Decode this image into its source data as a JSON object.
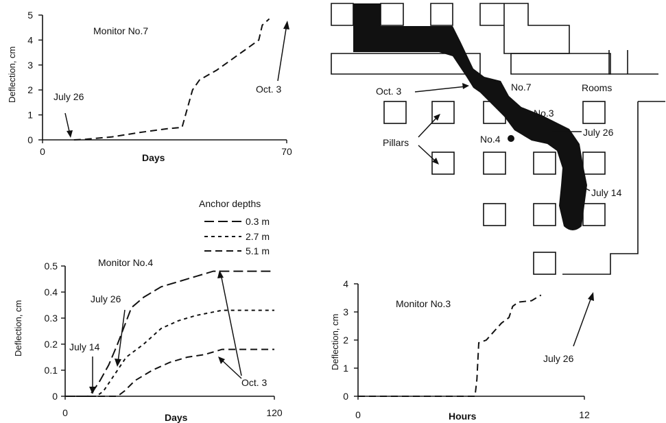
{
  "chart_data": [
    {
      "type": "line",
      "title": "Monitor No.7",
      "xlabel": "Days",
      "ylabel": "Deflection, cm",
      "xlim": [
        0,
        70
      ],
      "ylim": [
        0,
        5
      ],
      "x_ticks": [
        "0",
        "70"
      ],
      "y_ticks": [
        "0",
        "1",
        "2",
        "3",
        "4",
        "5"
      ],
      "series": [
        {
          "values": [
            [
              9,
              0
            ],
            [
              12,
              0.02
            ],
            [
              20,
              0.12
            ],
            [
              28,
              0.3
            ],
            [
              36,
              0.45
            ],
            [
              40,
              0.5
            ],
            [
              42,
              1.5
            ],
            [
              43,
              2.0
            ],
            [
              45,
              2.4
            ],
            [
              50,
              2.8
            ],
            [
              58,
              3.6
            ],
            [
              62,
              4.0
            ],
            [
              63,
              4.6
            ],
            [
              65,
              4.85
            ]
          ]
        }
      ],
      "annotations": [
        "July 26",
        "Oct.  3"
      ]
    },
    {
      "type": "line",
      "title": "Monitor No.4",
      "xlabel": "Days",
      "ylabel": "Deflection, cm",
      "xlim": [
        0,
        120
      ],
      "ylim": [
        0,
        0.5
      ],
      "x_ticks": [
        "0",
        "120"
      ],
      "y_ticks": [
        "0",
        "0.1",
        "0.2",
        "0.3",
        "0.4",
        "0.5"
      ],
      "legend_title": "Anchor depths",
      "series": [
        {
          "name": "0.3 m",
          "values": [
            [
              0,
              0
            ],
            [
              13,
              0
            ],
            [
              16,
              0.02
            ],
            [
              20,
              0.06
            ],
            [
              25,
              0.12
            ],
            [
              30,
              0.2
            ],
            [
              38,
              0.34
            ],
            [
              45,
              0.38
            ],
            [
              55,
              0.42
            ],
            [
              65,
              0.44
            ],
            [
              75,
              0.46
            ],
            [
              85,
              0.48
            ],
            [
              120,
              0.48
            ]
          ]
        },
        {
          "name": "2.7 m",
          "values": [
            [
              0,
              0
            ],
            [
              18,
              0
            ],
            [
              22,
              0.02
            ],
            [
              28,
              0.08
            ],
            [
              35,
              0.15
            ],
            [
              45,
              0.2
            ],
            [
              55,
              0.26
            ],
            [
              65,
              0.29
            ],
            [
              75,
              0.31
            ],
            [
              90,
              0.33
            ],
            [
              120,
              0.33
            ]
          ]
        },
        {
          "name": "5.1 m",
          "values": [
            [
              0,
              0
            ],
            [
              30,
              0
            ],
            [
              34,
              0.02
            ],
            [
              40,
              0.06
            ],
            [
              50,
              0.1
            ],
            [
              60,
              0.13
            ],
            [
              70,
              0.15
            ],
            [
              80,
              0.16
            ],
            [
              90,
              0.18
            ],
            [
              120,
              0.18
            ]
          ]
        }
      ],
      "annotations": [
        "July 14",
        "July 26",
        "Oct.  3"
      ]
    },
    {
      "type": "line",
      "title": "Monitor No.3",
      "xlabel": "Hours",
      "ylabel": "Deflection, cm",
      "xlim": [
        0,
        12
      ],
      "ylim": [
        0,
        4
      ],
      "x_ticks": [
        "0",
        "12"
      ],
      "y_ticks": [
        "0",
        "1",
        "2",
        "3",
        "4"
      ],
      "series": [
        {
          "values": [
            [
              0,
              0
            ],
            [
              6.2,
              0
            ],
            [
              6.3,
              0.6
            ],
            [
              6.4,
              1.9
            ],
            [
              6.8,
              2.0
            ],
            [
              7.2,
              2.3
            ],
            [
              7.6,
              2.6
            ],
            [
              8.0,
              2.8
            ],
            [
              8.2,
              3.2
            ],
            [
              8.5,
              3.35
            ],
            [
              9.2,
              3.4
            ],
            [
              9.7,
              3.6
            ]
          ]
        }
      ],
      "annotations": [
        "July 26"
      ]
    }
  ],
  "map_labels": {
    "rooms": "Rooms",
    "pillars": "Pillars",
    "oct3": "Oct.  3",
    "no7": "No.7",
    "no3": "No.3",
    "no4": "No.4",
    "july26": "July 26",
    "july14": "July 14"
  }
}
